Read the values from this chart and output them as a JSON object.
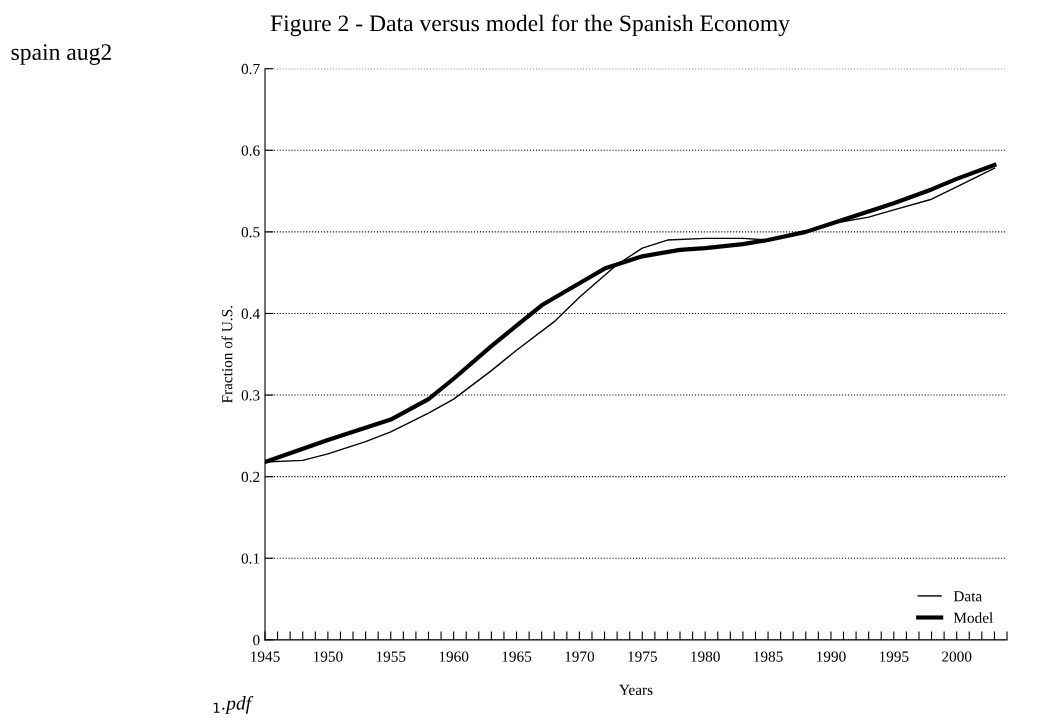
{
  "chart_data": {
    "type": "line",
    "title": "Figure 2 - Data versus model for the Spanish Economy",
    "subtitle": "spain aug2",
    "xlabel": "Years",
    "ylabel": "Fraction of U.S.",
    "annotations": [
      "$_{1}$.pdf"
    ],
    "series": [
      {
        "name": "Data",
        "color": "#000000",
        "x": [
          1945,
          1948,
          1950,
          1953,
          1955,
          1958,
          1960,
          1963,
          1965,
          1968,
          1970,
          1973,
          1975,
          1977,
          1980,
          1983,
          1985,
          1988,
          1990,
          1993,
          1995,
          1998,
          2000,
          2003
        ],
        "values": [
          0.218,
          0.22,
          0.228,
          0.243,
          0.255,
          0.278,
          0.295,
          0.33,
          0.355,
          0.39,
          0.42,
          0.46,
          0.48,
          0.49,
          0.492,
          0.492,
          0.49,
          0.5,
          0.51,
          0.518,
          0.527,
          0.54,
          0.555,
          0.578
        ]
      },
      {
        "name": "Model",
        "color": "#000000",
        "x": [
          1945,
          1950,
          1955,
          1958,
          1960,
          1963,
          1965,
          1967,
          1970,
          1972,
          1975,
          1978,
          1980,
          1983,
          1985,
          1988,
          1990,
          1995,
          1998,
          2000,
          2003
        ],
        "values": [
          0.218,
          0.245,
          0.27,
          0.295,
          0.32,
          0.36,
          0.385,
          0.41,
          0.437,
          0.455,
          0.47,
          0.478,
          0.48,
          0.485,
          0.49,
          0.5,
          0.51,
          0.535,
          0.552,
          0.565,
          0.582
        ]
      }
    ],
    "xlim": [
      1945,
      2004
    ],
    "ylim": [
      0,
      0.7
    ],
    "xticks": [
      1945,
      {
        "value": 1946,
        "label": null
      },
      {
        "value": 1947,
        "label": null
      },
      {
        "value": 1948,
        "label": null
      },
      {
        "value": 1949,
        "label": null
      },
      1950,
      {
        "value": 1951,
        "label": null
      },
      {
        "value": 1952,
        "label": null
      },
      {
        "value": 1953,
        "label": null
      },
      {
        "value": 1954,
        "label": null
      },
      1955,
      {
        "value": 1956,
        "label": null
      },
      {
        "value": 1957,
        "label": null
      },
      {
        "value": 1958,
        "label": null
      },
      {
        "value": 1959,
        "label": null
      },
      1960,
      {
        "value": 1961,
        "label": null
      },
      {
        "value": 1962,
        "label": null
      },
      {
        "value": 1963,
        "label": null
      },
      {
        "value": 1964,
        "label": null
      },
      1965,
      {
        "value": 1966,
        "label": null
      },
      {
        "value": 1967,
        "label": null
      },
      {
        "value": 1968,
        "label": null
      },
      {
        "value": 1969,
        "label": null
      },
      1970,
      {
        "value": 1971,
        "label": null
      },
      {
        "value": 1972,
        "label": null
      },
      {
        "value": 1973,
        "label": null
      },
      {
        "value": 1974,
        "label": null
      },
      1975,
      {
        "value": 1976,
        "label": null
      },
      {
        "value": 1977,
        "label": null
      },
      {
        "value": 1978,
        "label": null
      },
      {
        "value": 1979,
        "label": null
      },
      1980,
      {
        "value": 1981,
        "label": null
      },
      {
        "value": 1982,
        "label": null
      },
      {
        "value": 1983,
        "label": null
      },
      {
        "value": 1984,
        "label": null
      },
      1985,
      {
        "value": 1986,
        "label": null
      },
      {
        "value": 1987,
        "label": null
      },
      {
        "value": 1988,
        "label": null
      },
      {
        "value": 1989,
        "label": null
      },
      1990,
      {
        "value": 1991,
        "label": null
      },
      {
        "value": 1992,
        "label": null
      },
      {
        "value": 1993,
        "label": null
      },
      {
        "value": 1994,
        "label": null
      },
      1995,
      {
        "value": 1996,
        "label": null
      },
      {
        "value": 1997,
        "label": null
      },
      {
        "value": 1998,
        "label": null
      },
      {
        "value": 1999,
        "label": null
      },
      2000,
      {
        "value": 2001,
        "label": null
      },
      {
        "value": 2002,
        "label": null
      },
      {
        "value": 2003,
        "label": null
      },
      {
        "value": 2004,
        "label": null
      }
    ],
    "yticks": [
      0,
      0.1,
      0.2,
      0.3,
      0.4,
      0.5,
      0.6,
      0.7
    ],
    "grid": "y",
    "legend": "bottom right",
    "marker": "none",
    "line_style": "solid"
  }
}
